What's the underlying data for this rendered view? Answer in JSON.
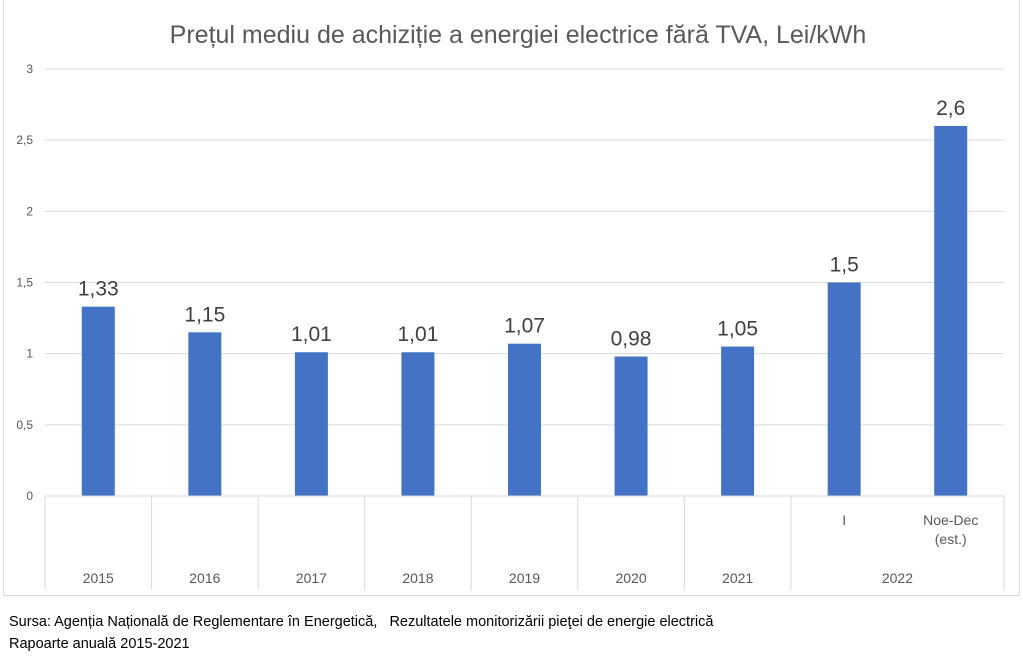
{
  "chart_data": {
    "type": "bar",
    "title": "Prețul mediu de achiziție a energiei electrice fără TVA, Lei/kWh",
    "xlabel": "",
    "ylabel": "",
    "ylim": [
      0,
      3
    ],
    "yticks": [
      0,
      0.5,
      1,
      1.5,
      2,
      2.5,
      3
    ],
    "ytick_labels": [
      "0",
      "0,5",
      "1",
      "1,5",
      "2",
      "2,5",
      "3"
    ],
    "grid": true,
    "legend": "none",
    "categories": [
      "2015",
      "2016",
      "2017",
      "2018",
      "2019",
      "2020",
      "2021",
      "I",
      "Noe-Dec (est.)"
    ],
    "category_groups": [
      {
        "label": "2015",
        "sub": [
          ""
        ]
      },
      {
        "label": "2016",
        "sub": [
          ""
        ]
      },
      {
        "label": "2017",
        "sub": [
          ""
        ]
      },
      {
        "label": "2018",
        "sub": [
          ""
        ]
      },
      {
        "label": "2019",
        "sub": [
          ""
        ]
      },
      {
        "label": "2020",
        "sub": [
          ""
        ]
      },
      {
        "label": "2021",
        "sub": [
          ""
        ]
      },
      {
        "label": "2022",
        "sub": [
          "I",
          "Noe-Dec\n(est.)"
        ]
      }
    ],
    "values": [
      1.33,
      1.15,
      1.01,
      1.01,
      1.07,
      0.98,
      1.05,
      1.5,
      2.6
    ],
    "data_labels": [
      "1,33",
      "1,15",
      "1,01",
      "1,01",
      "1,07",
      "0,98",
      "1,05",
      "1,5",
      "2,6"
    ],
    "bar_color": "#4472C4",
    "text_color": "#595959",
    "grid_color": "#D9D9D9"
  },
  "source": {
    "line1": "Sursa: Agenția Națională de Reglementare în Energetică,   Rezultatele monitorizării pieţei de energie electrică",
    "line2": "Rapoarte anuală 2015-2021"
  }
}
